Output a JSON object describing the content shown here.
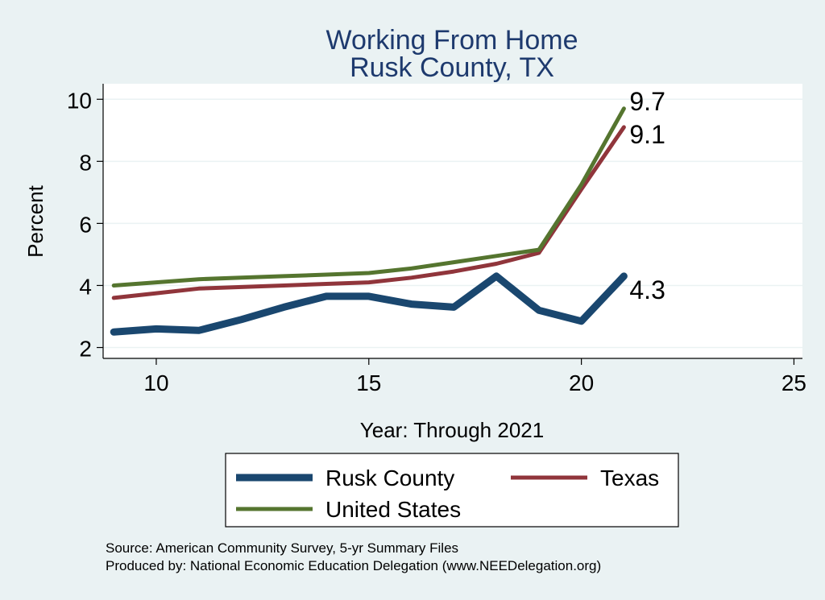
{
  "chart_data": {
    "type": "line",
    "title": "Working From Home",
    "subtitle": "Rusk County, TX",
    "xlabel": "Year: Through 2021",
    "ylabel": "Percent",
    "xlim": [
      8.75,
      25.2
    ],
    "ylim": [
      1.65,
      10.5
    ],
    "xticks": [
      10,
      15,
      20,
      25
    ],
    "yticks": [
      2,
      4,
      6,
      8,
      10
    ],
    "grid": "horizontal",
    "legend_position": "bottom",
    "series": [
      {
        "name": "Rusk County",
        "color": "#1a476f",
        "x": [
          9,
          10,
          11,
          12,
          13,
          14,
          15,
          16,
          17,
          18,
          19,
          20,
          21
        ],
        "values": [
          2.5,
          2.6,
          2.55,
          2.9,
          3.3,
          3.65,
          3.65,
          3.4,
          3.3,
          4.3,
          3.2,
          2.85,
          4.3
        ],
        "end_label": "4.3"
      },
      {
        "name": "Texas",
        "color": "#90353b",
        "x": [
          9,
          10,
          11,
          12,
          13,
          14,
          15,
          16,
          17,
          18,
          19,
          20,
          21
        ],
        "values": [
          3.6,
          3.75,
          3.9,
          3.95,
          4.0,
          4.05,
          4.1,
          4.25,
          4.45,
          4.7,
          5.05,
          7.1,
          9.1
        ],
        "end_label": "9.1"
      },
      {
        "name": "United States",
        "color": "#55752f",
        "x": [
          9,
          10,
          11,
          12,
          13,
          14,
          15,
          16,
          17,
          18,
          19,
          20,
          21
        ],
        "values": [
          4.0,
          4.1,
          4.2,
          4.25,
          4.3,
          4.35,
          4.4,
          4.55,
          4.75,
          4.95,
          5.15,
          7.25,
          9.7
        ],
        "end_label": "9.7"
      }
    ],
    "notes": [
      "Source: American Community Survey, 5-yr Summary Files",
      "Produced by: National Economic Education Delegation (www.NEEDelegation.org)"
    ]
  }
}
